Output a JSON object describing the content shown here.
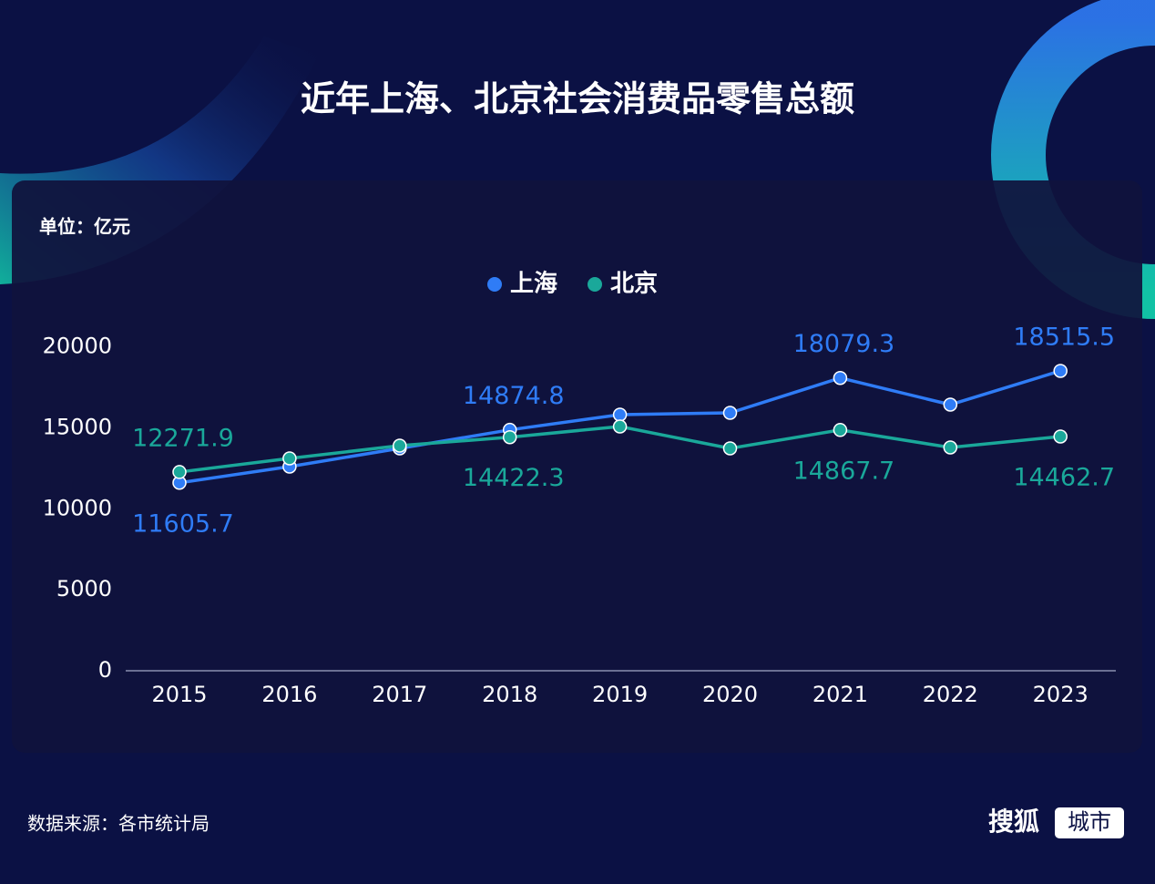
{
  "chart_data": {
    "type": "line",
    "title": "近年上海、北京社会消费品零售总额",
    "unit": "单位：亿元",
    "x": [
      "2015",
      "2016",
      "2017",
      "2018",
      "2019",
      "2020",
      "2021",
      "2022",
      "2023"
    ],
    "series": [
      {
        "name": "上海",
        "color": "#2f7cf6",
        "values": [
          11605.7,
          12606,
          13731,
          14874.8,
          15813,
          15926,
          18079.3,
          16432,
          18515.5
        ],
        "value_labels": [
          "11605.7",
          null,
          null,
          "14874.8",
          null,
          null,
          "18079.3",
          null,
          "18515.5"
        ]
      },
      {
        "name": "北京",
        "color": "#1aa89a",
        "values": [
          12271.9,
          13112,
          13900,
          14422.3,
          15082,
          13731,
          14867.7,
          13787,
          14462.7
        ],
        "value_labels": [
          "12271.9",
          null,
          null,
          "14422.3",
          null,
          null,
          "14867.7",
          null,
          "14462.7"
        ]
      }
    ],
    "ylim": [
      0,
      20000
    ],
    "yticks": [
      0,
      5000,
      10000,
      15000,
      20000
    ],
    "grid": false,
    "legend": "top",
    "source": "数据来源：各市统计局",
    "brand": "搜狐",
    "brand_tag": "城市"
  }
}
